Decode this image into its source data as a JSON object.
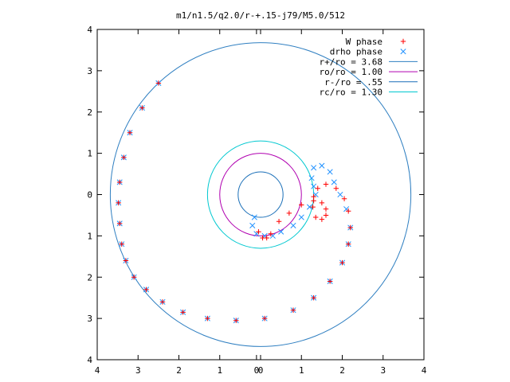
{
  "chart_data": {
    "type": "scatter",
    "title": "m1/n1.5/q2.0/r-+.15-j79/M5.0/512",
    "xlabel": "",
    "ylabel": "",
    "xlim": [
      -4,
      4
    ],
    "ylim": [
      -4,
      4
    ],
    "grid": false,
    "legend_position": "top-right",
    "x_tick_labels": [
      "4",
      "3",
      "2",
      "1",
      "0",
      "0",
      "1",
      "2",
      "3",
      "4"
    ],
    "y_tick_labels": [
      "4",
      "3",
      "2",
      "1",
      "0",
      "1",
      "2",
      "3",
      "4"
    ],
    "series": [
      {
        "name": "W phase",
        "kind": "points",
        "marker": "+",
        "color": "#ff0000",
        "x": [
          -2.5,
          -2.9,
          -3.2,
          -3.35,
          -3.45,
          -3.48,
          -3.45,
          -3.4,
          -3.3,
          -3.1,
          -2.8,
          -2.4,
          -1.9,
          -1.3,
          -0.6,
          0.1,
          0.8,
          1.3,
          1.7,
          2.0,
          2.15,
          2.2,
          2.15,
          2.05,
          1.85,
          1.6,
          1.4,
          1.3,
          1.28,
          1.35,
          1.5,
          1.6,
          1.6,
          1.5,
          1.3,
          1.0,
          0.7,
          0.45,
          0.25,
          0.15,
          0.05,
          -0.05
        ],
        "y": [
          2.7,
          2.1,
          1.5,
          0.9,
          0.3,
          -0.2,
          -0.7,
          -1.2,
          -1.6,
          -2.0,
          -2.3,
          -2.6,
          -2.85,
          -3.0,
          -3.05,
          -3.0,
          -2.8,
          -2.5,
          -2.1,
          -1.65,
          -1.2,
          -0.8,
          -0.4,
          -0.1,
          0.15,
          0.25,
          0.15,
          -0.05,
          -0.3,
          -0.55,
          -0.6,
          -0.5,
          -0.35,
          -0.2,
          -0.15,
          -0.25,
          -0.45,
          -0.65,
          -0.95,
          -1.05,
          -1.05,
          -0.9
        ]
      },
      {
        "name": "drho phase",
        "kind": "points",
        "marker": "x",
        "color": "#1e90ff",
        "x": [
          -2.5,
          -2.9,
          -3.2,
          -3.35,
          -3.45,
          -3.48,
          -3.45,
          -3.4,
          -3.3,
          -3.1,
          -2.8,
          -2.4,
          -1.9,
          -1.3,
          -0.6,
          0.1,
          0.8,
          1.3,
          1.7,
          2.0,
          2.15,
          2.2,
          2.1,
          1.95,
          1.8,
          1.7,
          1.5,
          1.3,
          1.25,
          1.3,
          1.35,
          1.2,
          1.0,
          0.8,
          0.5,
          0.3,
          0.1,
          -0.1,
          -0.2,
          -0.15
        ],
        "y": [
          2.7,
          2.1,
          1.5,
          0.9,
          0.3,
          -0.2,
          -0.7,
          -1.2,
          -1.6,
          -2.0,
          -2.3,
          -2.6,
          -2.85,
          -3.0,
          -3.05,
          -3.0,
          -2.8,
          -2.5,
          -2.1,
          -1.65,
          -1.2,
          -0.8,
          -0.35,
          0.0,
          0.3,
          0.55,
          0.7,
          0.65,
          0.4,
          0.2,
          0.0,
          -0.3,
          -0.55,
          -0.75,
          -0.9,
          -1.0,
          -1.0,
          -0.95,
          -0.75,
          -0.55
        ]
      },
      {
        "name": "r+/ro = 3.68",
        "kind": "circle",
        "radius": 3.68,
        "color": "#2f7fc1"
      },
      {
        "name": "ro/ro = 1.00",
        "kind": "circle",
        "radius": 1.0,
        "color": "#b000b0"
      },
      {
        "name": "r-/ro = .55",
        "kind": "circle",
        "radius": 0.55,
        "color": "#1a6fb8"
      },
      {
        "name": "rc/ro = 1.30",
        "kind": "circle",
        "radius": 1.3,
        "color": "#00c8d0"
      }
    ]
  }
}
